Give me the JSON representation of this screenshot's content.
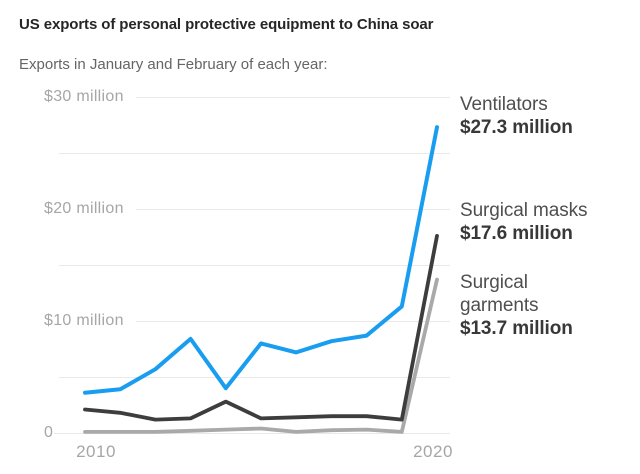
{
  "header": {
    "title": "US exports of personal protective equipment to China soar",
    "subtitle": "Exports in January and February of each year:"
  },
  "chart_data": {
    "type": "line",
    "title": "US exports of personal protective equipment to China soar",
    "subtitle": "Exports in January and February of each year:",
    "x": [
      2010,
      2011,
      2012,
      2013,
      2014,
      2015,
      2016,
      2017,
      2018,
      2019,
      2020
    ],
    "series": [
      {
        "name": "Ventilators",
        "color": "#189df0",
        "values": [
          3.6,
          3.9,
          5.7,
          8.4,
          4.0,
          8.0,
          7.2,
          8.2,
          8.7,
          11.3,
          27.3
        ]
      },
      {
        "name": "Surgical masks",
        "color": "#3d3d3d",
        "values": [
          2.1,
          1.8,
          1.2,
          1.3,
          2.8,
          1.3,
          1.4,
          1.5,
          1.5,
          1.2,
          17.6
        ]
      },
      {
        "name": "Surgical garments",
        "color": "#a9a9a9",
        "values": [
          0.1,
          0.1,
          0.1,
          0.2,
          0.3,
          0.4,
          0.1,
          0.25,
          0.3,
          0.1,
          13.7
        ]
      }
    ],
    "ylim": [
      0,
      30
    ],
    "grid_values": [
      0,
      5,
      10,
      15,
      20,
      25,
      30
    ],
    "yticks": [
      {
        "value": 30,
        "label": "$30 million"
      },
      {
        "value": 20,
        "label": "$20 million"
      },
      {
        "value": 10,
        "label": "$10 million"
      },
      {
        "value": 0,
        "label": "0"
      }
    ],
    "xticks": [
      {
        "value": 2010,
        "label": "2010"
      },
      {
        "value": 2020,
        "label": "2020"
      }
    ],
    "grid": "horizontal-only",
    "legend_position": "right-annotations",
    "annotations": [
      {
        "name": "Ventilators",
        "value_label": "$27.3 million"
      },
      {
        "name": "Surgical masks",
        "value_label": "$17.6 million"
      },
      {
        "name": "Surgical garments",
        "value_label": "$13.7 million"
      }
    ]
  }
}
